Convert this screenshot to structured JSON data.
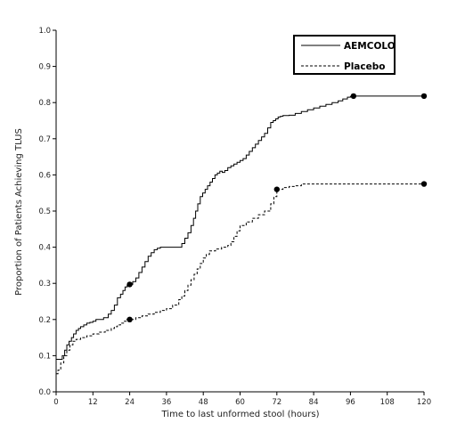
{
  "chart_data": {
    "type": "line",
    "title": "",
    "xlabel": "Time to last unformed stool (hours)",
    "ylabel": "Proportion of Patients Achieving TLUS",
    "xlim": [
      0,
      120
    ],
    "ylim": [
      0,
      1.0
    ],
    "x_ticks": [
      0,
      12,
      24,
      36,
      48,
      60,
      72,
      84,
      96,
      108,
      120
    ],
    "y_ticks": [
      0.0,
      0.1,
      0.2,
      0.3,
      0.4,
      0.5,
      0.6,
      0.7,
      0.8,
      0.9,
      1.0
    ],
    "x_tick_labels": [
      "0",
      "12",
      "24",
      "36",
      "48",
      "60",
      "72",
      "84",
      "96",
      "108",
      "120"
    ],
    "y_tick_labels": [
      "0.0",
      "0.1",
      "0.2",
      "0.3",
      "0.4",
      "0.5",
      "0.6",
      "0.7",
      "0.8",
      "0.9",
      "1.0"
    ],
    "grid": false,
    "legend_position": "top-right",
    "series": [
      {
        "name": "AEMCOLO",
        "style": "solid",
        "color": "#000000",
        "x": [
          0,
          0.5,
          2,
          2.8,
          3.5,
          4.2,
          5,
          5.7,
          6.5,
          7.3,
          8,
          9,
          10,
          11,
          12,
          13,
          14,
          15.5,
          17,
          18,
          19,
          20,
          21,
          21.8,
          22.5,
          23.2,
          24,
          25,
          26,
          27,
          28,
          29,
          30,
          31,
          32,
          33,
          34,
          36,
          38,
          40,
          41,
          42,
          43,
          44,
          44.8,
          45.5,
          46.2,
          47,
          47.8,
          48.6,
          49.4,
          50.2,
          51,
          51.8,
          52.6,
          53.4,
          54.2,
          55,
          56,
          57,
          58,
          59,
          60,
          61,
          62,
          63,
          64,
          65,
          66,
          67,
          68,
          69,
          70,
          70.8,
          71.6,
          72.4,
          73.2,
          74,
          76,
          78,
          80,
          82,
          84,
          86,
          88,
          90,
          92,
          93.5,
          95,
          96,
          97,
          98,
          120
        ],
        "y": [
          0.09,
          0.09,
          0.1,
          0.115,
          0.13,
          0.14,
          0.15,
          0.16,
          0.17,
          0.175,
          0.18,
          0.185,
          0.19,
          0.192,
          0.195,
          0.2,
          0.2,
          0.205,
          0.215,
          0.225,
          0.24,
          0.26,
          0.27,
          0.28,
          0.29,
          0.295,
          0.297,
          0.305,
          0.315,
          0.33,
          0.345,
          0.36,
          0.375,
          0.385,
          0.393,
          0.397,
          0.4,
          0.4,
          0.4,
          0.4,
          0.41,
          0.425,
          0.44,
          0.46,
          0.48,
          0.5,
          0.52,
          0.54,
          0.55,
          0.56,
          0.57,
          0.58,
          0.59,
          0.6,
          0.605,
          0.61,
          0.607,
          0.612,
          0.62,
          0.625,
          0.63,
          0.635,
          0.64,
          0.645,
          0.655,
          0.665,
          0.675,
          0.685,
          0.695,
          0.705,
          0.715,
          0.73,
          0.745,
          0.75,
          0.755,
          0.76,
          0.762,
          0.764,
          0.765,
          0.77,
          0.775,
          0.78,
          0.785,
          0.79,
          0.795,
          0.8,
          0.805,
          0.81,
          0.815,
          0.817,
          0.818,
          0.818,
          0.818
        ],
        "markers": [
          [
            24,
            0.297
          ],
          [
            97,
            0.818
          ],
          [
            120,
            0.818
          ]
        ]
      },
      {
        "name": "Placebo",
        "style": "dashed",
        "color": "#000000",
        "x": [
          0,
          0.6,
          1.5,
          2.5,
          3.5,
          4.5,
          5.5,
          6.5,
          8,
          10,
          12,
          14,
          16,
          18,
          19,
          20,
          21,
          22,
          23,
          24,
          26,
          28,
          30,
          32,
          34,
          36,
          38,
          40,
          41,
          42,
          43,
          44,
          45,
          46,
          47,
          48,
          49,
          50,
          52,
          54,
          56,
          57,
          58,
          59,
          60,
          62,
          64,
          66,
          68,
          70,
          71,
          72,
          74,
          76,
          78,
          80,
          84,
          90,
          96,
          100,
          110,
          120
        ],
        "y": [
          0.05,
          0.06,
          0.08,
          0.1,
          0.115,
          0.13,
          0.14,
          0.145,
          0.15,
          0.155,
          0.16,
          0.165,
          0.17,
          0.175,
          0.18,
          0.185,
          0.19,
          0.195,
          0.2,
          0.2,
          0.205,
          0.21,
          0.215,
          0.22,
          0.225,
          0.23,
          0.24,
          0.255,
          0.265,
          0.28,
          0.295,
          0.31,
          0.325,
          0.34,
          0.355,
          0.37,
          0.38,
          0.39,
          0.395,
          0.4,
          0.405,
          0.415,
          0.43,
          0.445,
          0.46,
          0.47,
          0.48,
          0.49,
          0.5,
          0.52,
          0.54,
          0.56,
          0.565,
          0.568,
          0.57,
          0.575,
          0.575,
          0.575,
          0.575,
          0.575,
          0.575,
          0.575
        ],
        "markers": [
          [
            24,
            0.2
          ],
          [
            72,
            0.56
          ],
          [
            120,
            0.575
          ]
        ]
      }
    ]
  }
}
